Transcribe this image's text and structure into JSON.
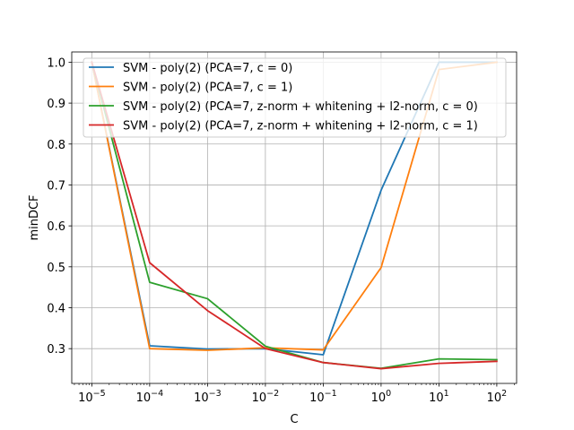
{
  "chart_data": {
    "type": "line",
    "title": "",
    "xlabel": "C",
    "ylabel": "minDCF",
    "xscale": "log",
    "x": [
      1e-05,
      0.0001,
      0.001,
      0.01,
      0.1,
      1,
      10,
      100
    ],
    "xlim": [
      4.5e-06,
      220
    ],
    "ylim": [
      0.215,
      1.025
    ],
    "xticks": [
      {
        "value": 1e-05,
        "base": "10",
        "exp": "−5"
      },
      {
        "value": 0.0001,
        "base": "10",
        "exp": "−4"
      },
      {
        "value": 0.001,
        "base": "10",
        "exp": "−3"
      },
      {
        "value": 0.01,
        "base": "10",
        "exp": "−2"
      },
      {
        "value": 0.1,
        "base": "10",
        "exp": "−1"
      },
      {
        "value": 1,
        "base": "10",
        "exp": "0"
      },
      {
        "value": 10,
        "base": "10",
        "exp": "1"
      },
      {
        "value": 100,
        "base": "10",
        "exp": "2"
      }
    ],
    "yticks": [
      {
        "value": 0.3,
        "label": "0.3"
      },
      {
        "value": 0.4,
        "label": "0.4"
      },
      {
        "value": 0.5,
        "label": "0.5"
      },
      {
        "value": 0.6,
        "label": "0.6"
      },
      {
        "value": 0.7,
        "label": "0.7"
      },
      {
        "value": 0.8,
        "label": "0.8"
      },
      {
        "value": 0.9,
        "label": "0.9"
      },
      {
        "value": 1.0,
        "label": "1.0"
      }
    ],
    "grid": true,
    "legend_position": "top",
    "series": [
      {
        "name": "SVM - poly(2) (PCA=7, c = 0)",
        "color": "#1f77b4",
        "values": [
          1.0,
          0.307,
          0.299,
          0.3,
          0.285,
          0.687,
          1.0,
          1.0
        ]
      },
      {
        "name": "SVM - poly(2) (PCA=7, c = 1)",
        "color": "#ff7f0e",
        "values": [
          1.0,
          0.3,
          0.296,
          0.302,
          0.297,
          0.498,
          0.982,
          1.0
        ]
      },
      {
        "name": "SVM - poly(2) (PCA=7, z-norm + whitening + l2-norm, c = 0)",
        "color": "#2ca02c",
        "values": [
          1.0,
          0.462,
          0.422,
          0.306,
          0.266,
          0.252,
          0.275,
          0.273
        ]
      },
      {
        "name": "SVM - poly(2) (PCA=7, z-norm + whitening + l2-norm, c = 1)",
        "color": "#d62728",
        "values": [
          1.0,
          0.51,
          0.393,
          0.3,
          0.266,
          0.251,
          0.264,
          0.269
        ]
      }
    ]
  }
}
